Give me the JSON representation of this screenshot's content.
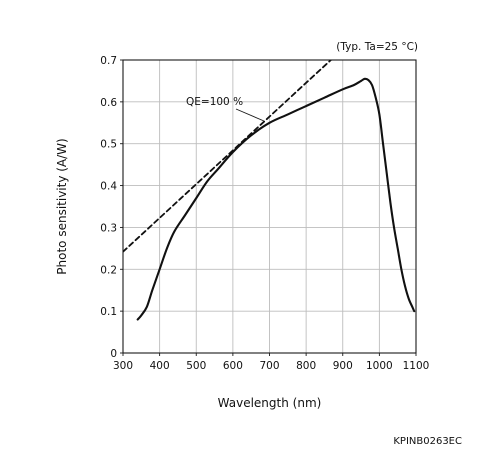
{
  "chart_data": {
    "type": "line",
    "title": "",
    "xlabel": "Wavelength (nm)",
    "ylabel": "Photo sensitivity (A/W)",
    "xlim": [
      300,
      1100
    ],
    "ylim": [
      0,
      0.7
    ],
    "xticks": [
      "300",
      "400",
      "500",
      "600",
      "700",
      "800",
      "900",
      "1000",
      "1100"
    ],
    "yticks": [
      "0",
      "0.1",
      "0.2",
      "0.3",
      "0.4",
      "0.5",
      "0.6",
      "0.7"
    ],
    "grid": true,
    "condition_note": "(Typ. Ta=25 °C)",
    "catalog_code": "KPINB0263EC",
    "series": [
      {
        "name": "",
        "style": "solid",
        "x": [
          340,
          350,
          365,
          380,
          400,
          420,
          440,
          470,
          500,
          530,
          560,
          600,
          650,
          700,
          750,
          800,
          850,
          900,
          930,
          950,
          960,
          970,
          980,
          990,
          1000,
          1010,
          1020,
          1030,
          1040,
          1050,
          1060,
          1070,
          1080,
          1090,
          1095
        ],
        "values": [
          0.08,
          0.09,
          0.11,
          0.15,
          0.2,
          0.25,
          0.29,
          0.33,
          0.37,
          0.41,
          0.44,
          0.48,
          0.52,
          0.55,
          0.57,
          0.59,
          0.61,
          0.63,
          0.64,
          0.65,
          0.655,
          0.652,
          0.64,
          0.61,
          0.57,
          0.5,
          0.43,
          0.36,
          0.3,
          0.25,
          0.2,
          0.16,
          0.13,
          0.11,
          0.1
        ]
      },
      {
        "name": "QE=100 %",
        "style": "dashed",
        "x": [
          300,
          870
        ],
        "values": [
          0.242,
          0.702
        ]
      }
    ]
  }
}
